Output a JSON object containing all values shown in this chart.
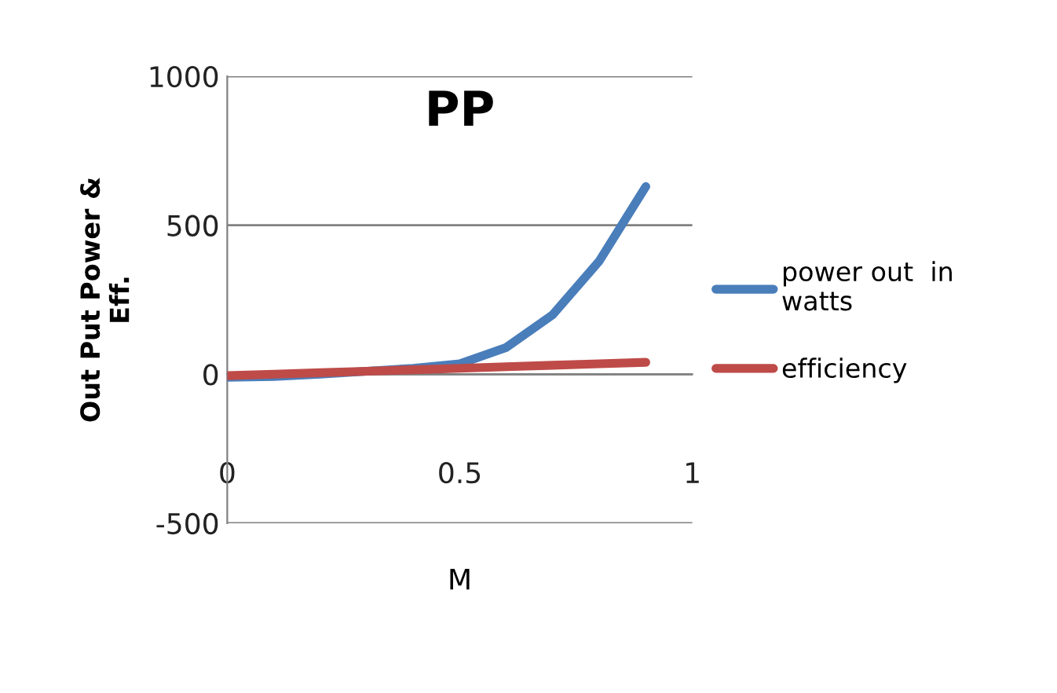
{
  "chart_data": {
    "type": "line",
    "title": "PP",
    "xlabel": "M",
    "ylabel": "Out Put Power &\nEff.",
    "series": [
      {
        "name": "power out  in watts",
        "color": "#4a7ebb",
        "x": [
          0,
          0.1,
          0.2,
          0.3,
          0.4,
          0.5,
          0.6,
          0.7,
          0.8,
          0.9
        ],
        "values": [
          -10,
          -8,
          0,
          10,
          20,
          35,
          90,
          200,
          380,
          630
        ]
      },
      {
        "name": "efficiency",
        "color": "#be4b48",
        "x": [
          0,
          0.1,
          0.2,
          0.3,
          0.4,
          0.5,
          0.6,
          0.7,
          0.8,
          0.9
        ],
        "values": [
          -5,
          0,
          5,
          10,
          15,
          20,
          25,
          30,
          35,
          40
        ]
      }
    ],
    "xlim": [
      0,
      1
    ],
    "xticks": [
      0,
      0.5,
      1
    ],
    "ylim": [
      -500,
      1000
    ],
    "yticks": [
      -500,
      0,
      500,
      1000
    ],
    "grid": "y",
    "legend": "right",
    "marker": "none",
    "line_style": "solid"
  }
}
